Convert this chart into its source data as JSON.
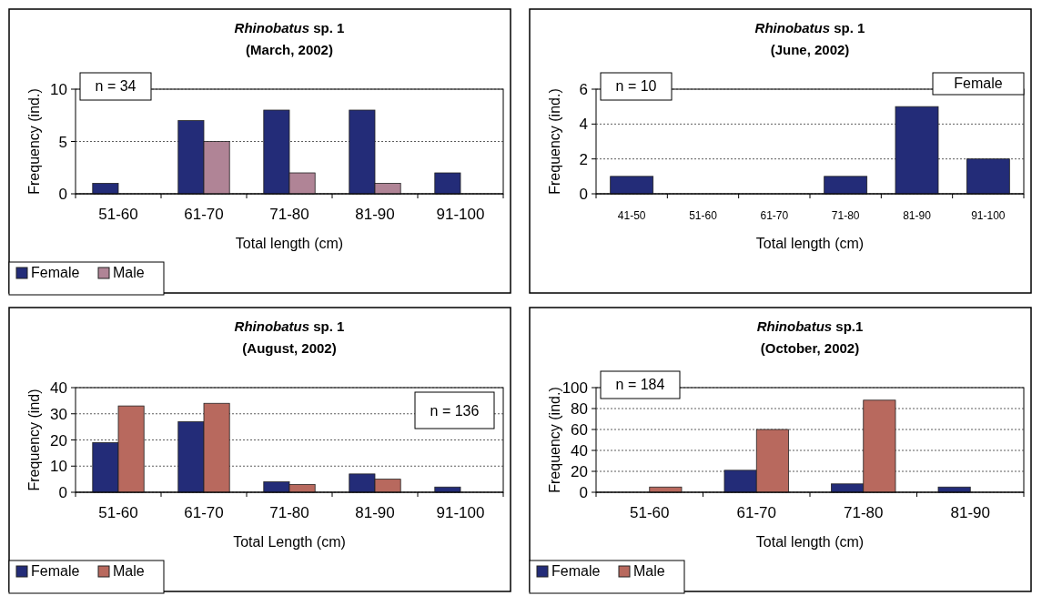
{
  "chart_data": [
    {
      "type": "bar",
      "title": "Rhinobatus sp. 1",
      "subtitle": "(March, 2002)",
      "xlabel": "Total length (cm)",
      "ylabel": "Frequency (ind.)",
      "categories": [
        "51-60",
        "61-70",
        "71-80",
        "81-90",
        "91-100"
      ],
      "series": [
        {
          "name": "Female",
          "color": "#232c78",
          "values": [
            1,
            7,
            8,
            8,
            2
          ]
        },
        {
          "name": "Male",
          "color": "#b08496",
          "values": [
            0,
            5,
            2,
            1,
            0
          ]
        }
      ],
      "ylim": [
        0,
        10
      ],
      "yticks": [
        0,
        5,
        10
      ],
      "grid": "y",
      "legend": "bottom left",
      "annotations": [
        "n = 34"
      ]
    },
    {
      "type": "bar",
      "title": "Rhinobatus sp. 1",
      "subtitle": "(June, 2002)",
      "xlabel": "Total length (cm)",
      "ylabel": "Frequency (ind.)",
      "categories": [
        "41-50",
        "51-60",
        "61-70",
        "71-80",
        "81-90",
        "91-100"
      ],
      "series": [
        {
          "name": "Female",
          "color": "#232c78",
          "values": [
            1,
            0,
            0,
            1,
            5,
            2
          ]
        }
      ],
      "ylim": [
        0,
        6
      ],
      "yticks": [
        0,
        2,
        4,
        6
      ],
      "grid": "y",
      "legend": "top right",
      "annotations": [
        "n = 10"
      ]
    },
    {
      "type": "bar",
      "title": "Rhinobatus sp. 1",
      "subtitle": "(August, 2002)",
      "xlabel": "Total Length (cm)",
      "ylabel": "Frequency (ind)",
      "categories": [
        "51-60",
        "61-70",
        "71-80",
        "81-90",
        "91-100"
      ],
      "series": [
        {
          "name": "Female",
          "color": "#232c78",
          "values": [
            19,
            27,
            4,
            7,
            2
          ]
        },
        {
          "name": "Male",
          "color": "#b8695e",
          "values": [
            33,
            34,
            3,
            5,
            0
          ]
        }
      ],
      "ylim": [
        0,
        40
      ],
      "yticks": [
        0,
        10,
        20,
        30,
        40
      ],
      "grid": "y",
      "legend": "bottom left",
      "annotations": [
        "n = 136"
      ]
    },
    {
      "type": "bar",
      "title": "Rhinobatus sp.1",
      "subtitle": "(October, 2002)",
      "xlabel": "Total length (cm)",
      "ylabel": "Frequency (ind.)",
      "categories": [
        "51-60",
        "61-70",
        "71-80",
        "81-90"
      ],
      "series": [
        {
          "name": "Female",
          "color": "#232c78",
          "values": [
            0,
            21,
            8,
            5
          ]
        },
        {
          "name": "Male",
          "color": "#b8695e",
          "values": [
            5,
            60,
            88,
            0
          ]
        }
      ],
      "ylim": [
        0,
        100
      ],
      "yticks": [
        0,
        20,
        40,
        60,
        80,
        100
      ],
      "grid": "y",
      "legend": "bottom left",
      "annotations": [
        "n = 184"
      ]
    }
  ]
}
